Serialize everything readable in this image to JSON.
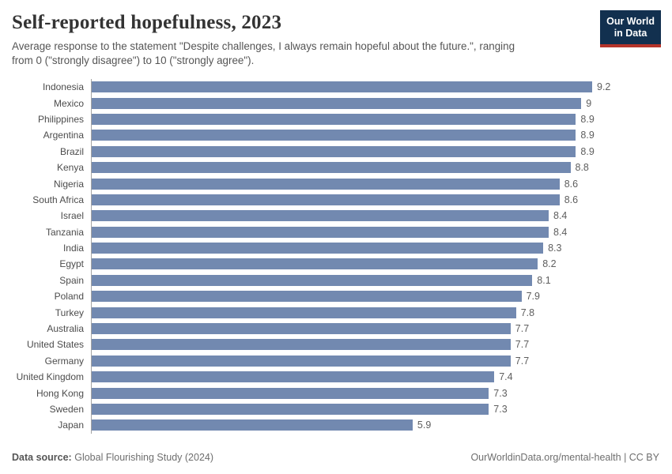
{
  "header": {
    "title": "Self-reported hopefulness, 2023",
    "subtitle_line1": "Average response to the statement \"Despite challenges, I always remain hopeful about the future.\", ranging",
    "subtitle_line2": "from 0 (\"strongly disagree\") to 10 (\"strongly agree\").",
    "logo": {
      "line1": "Our World",
      "line2": "in Data"
    }
  },
  "chart_data": {
    "type": "bar",
    "orientation": "horizontal",
    "title": "Self-reported hopefulness, 2023",
    "xlabel": "",
    "ylabel": "",
    "xlim": [
      0,
      9.2
    ],
    "grid": false,
    "legend": false,
    "bar_color": "#7289b0",
    "categories": [
      "Indonesia",
      "Mexico",
      "Philippines",
      "Argentina",
      "Brazil",
      "Kenya",
      "Nigeria",
      "South Africa",
      "Israel",
      "Tanzania",
      "India",
      "Egypt",
      "Spain",
      "Poland",
      "Turkey",
      "Australia",
      "United States",
      "Germany",
      "United Kingdom",
      "Hong Kong",
      "Sweden",
      "Japan"
    ],
    "values": [
      9.2,
      9,
      8.9,
      8.9,
      8.9,
      8.8,
      8.6,
      8.6,
      8.4,
      8.4,
      8.3,
      8.2,
      8.1,
      7.9,
      7.8,
      7.7,
      7.7,
      7.7,
      7.4,
      7.3,
      7.3,
      5.9
    ],
    "value_labels": [
      "9.2",
      "9",
      "8.9",
      "8.9",
      "8.9",
      "8.8",
      "8.6",
      "8.6",
      "8.4",
      "8.4",
      "8.3",
      "8.2",
      "8.1",
      "7.9",
      "7.8",
      "7.7",
      "7.7",
      "7.7",
      "7.4",
      "7.3",
      "7.3",
      "5.9"
    ]
  },
  "footer": {
    "source_label": "Data source:",
    "source_value": "Global Flourishing Study (2024)",
    "credit": "OurWorldinData.org/mental-health | CC BY"
  },
  "colors": {
    "bar": "#7289b0",
    "axis_line": "#a3a3a3",
    "logo_bg": "#12304f",
    "logo_accent": "#b5342a",
    "title_text": "#333333",
    "subtitle_text": "#555555"
  }
}
